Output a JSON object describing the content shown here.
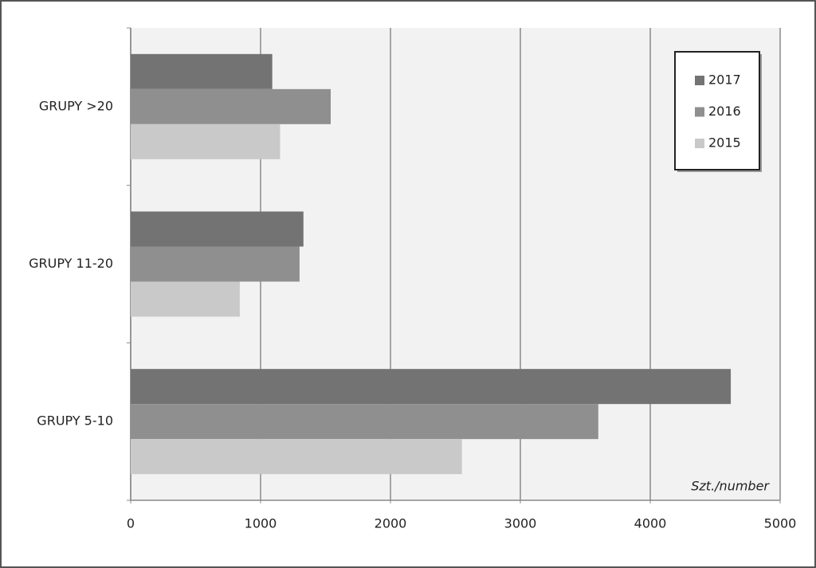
{
  "chart_data": {
    "type": "bar",
    "orientation": "horizontal",
    "x_label": "Szt./number",
    "categories": [
      "GRUPY >20",
      "GRUPY 11-20",
      "GRUPY 5-10"
    ],
    "series": [
      {
        "name": "2017",
        "color": "#737373",
        "values": [
          1090,
          1330,
          4620
        ]
      },
      {
        "name": "2016",
        "color": "#8f8f8f",
        "values": [
          1540,
          1300,
          3600
        ]
      },
      {
        "name": "2015",
        "color": "#c9c9c9",
        "values": [
          1150,
          840,
          2550
        ]
      }
    ],
    "xlim": [
      0,
      5000
    ],
    "xticks": [
      0,
      1000,
      2000,
      3000,
      4000,
      5000
    ],
    "grid": true,
    "legend": "top-right"
  }
}
